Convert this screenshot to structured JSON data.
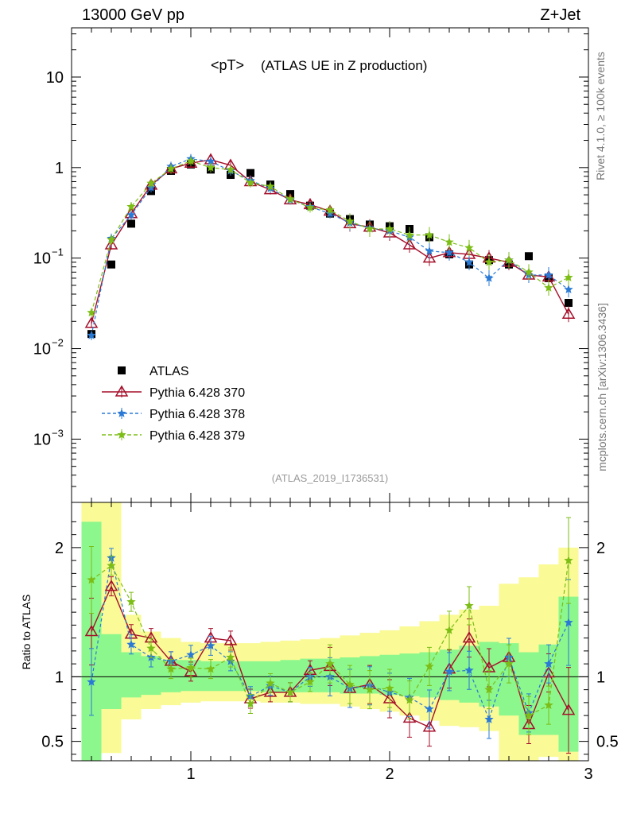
{
  "header": {
    "energy_label": "13000 GeV pp",
    "process_label": "Z+Jet"
  },
  "side_labels": {
    "rivet": "Rivet 4.1.0, ≥ 100k events",
    "mcplots": "mcplots.cern.ch [arXiv:1306.3436]"
  },
  "analysis_id": "(ATLAS_2019_I1736531)",
  "colors": {
    "atlas": "#000000",
    "p370": "#a50f2a",
    "p378": "#2a7ad5",
    "p379": "#7cbd16",
    "band_inner": "#8cf78c",
    "band_outer": "#fafa96"
  },
  "chart_data": {
    "type": "scatter",
    "title": "<pT>",
    "subtitle": "(ATLAS UE in Z production)",
    "xlabel": "",
    "ylabel_ratio": "Ratio to ATLAS",
    "xlim": [
      0.4,
      3.0
    ],
    "ylim": [
      0.0002,
      35
    ],
    "ylim_ratio": [
      0.35,
      2.35
    ],
    "x_ticks": [
      "1",
      "2",
      "3"
    ],
    "y_ticks": [
      "10",
      "1",
      "10^-1",
      "10^-2",
      "10^-3"
    ],
    "ratio_ticks": [
      "2",
      "1",
      "0.5"
    ],
    "x": [
      0.5,
      0.6,
      0.7,
      0.8,
      0.9,
      1.0,
      1.1,
      1.2,
      1.3,
      1.4,
      1.5,
      1.6,
      1.7,
      1.8,
      1.9,
      2.0,
      2.1,
      2.2,
      2.3,
      2.4,
      2.5,
      2.6,
      2.7,
      2.8,
      2.9
    ],
    "series": [
      {
        "name": "ATLAS",
        "key": "atlas",
        "values": [
          0.0145,
          0.085,
          0.24,
          0.55,
          0.92,
          1.08,
          0.95,
          0.83,
          0.87,
          0.65,
          0.51,
          0.38,
          0.31,
          0.27,
          0.235,
          0.225,
          0.21,
          0.17,
          0.11,
          0.085,
          0.095,
          0.085,
          0.105,
          0.06,
          0.032
        ]
      },
      {
        "name": "Pythia 6.428 370",
        "key": "p370",
        "values": [
          0.019,
          0.14,
          0.31,
          0.64,
          0.97,
          1.12,
          1.22,
          1.06,
          0.7,
          0.57,
          0.44,
          0.39,
          0.33,
          0.24,
          0.22,
          0.19,
          0.14,
          0.1,
          0.115,
          0.11,
          0.1,
          0.09,
          0.065,
          0.062,
          0.024
        ]
      },
      {
        "name": "Pythia 6.428 378",
        "key": "p378",
        "values": [
          0.014,
          0.165,
          0.3,
          0.6,
          1.03,
          1.25,
          1.17,
          0.92,
          0.72,
          0.59,
          0.44,
          0.37,
          0.31,
          0.245,
          0.215,
          0.2,
          0.17,
          0.12,
          0.115,
          0.09,
          0.06,
          0.095,
          0.065,
          0.065,
          0.045
        ]
      },
      {
        "name": "Pythia 6.428 379",
        "key": "p379",
        "values": [
          0.025,
          0.16,
          0.37,
          0.67,
          0.97,
          1.18,
          1.0,
          0.95,
          0.68,
          0.62,
          0.45,
          0.36,
          0.34,
          0.255,
          0.21,
          0.21,
          0.18,
          0.18,
          0.15,
          0.13,
          0.09,
          0.095,
          0.07,
          0.047,
          0.061
        ]
      }
    ],
    "ratio_series": [
      {
        "name": "Pythia 6.428 370",
        "key": "p370",
        "values": [
          1.35,
          1.7,
          1.33,
          1.3,
          1.12,
          1.04,
          1.3,
          1.28,
          0.83,
          0.88,
          0.88,
          1.05,
          1.08,
          0.91,
          0.94,
          0.83,
          0.68,
          0.61,
          1.06,
          1.3,
          1.07,
          1.15,
          0.63,
          1.03,
          0.74
        ]
      },
      {
        "name": "Pythia 6.428 378",
        "key": "p378",
        "values": [
          0.96,
          1.92,
          1.25,
          1.15,
          1.12,
          1.17,
          1.24,
          1.12,
          0.85,
          0.93,
          0.88,
          1.0,
          1.0,
          0.91,
          0.93,
          0.88,
          0.84,
          0.75,
          1.04,
          1.05,
          0.67,
          1.15,
          0.72,
          1.1,
          1.42
        ]
      },
      {
        "name": "Pythia 6.428 379",
        "key": "p379",
        "values": [
          1.75,
          1.86,
          1.58,
          1.22,
          1.06,
          1.07,
          1.06,
          1.15,
          0.79,
          0.95,
          0.88,
          0.96,
          1.1,
          0.94,
          0.9,
          0.91,
          0.82,
          1.08,
          1.36,
          1.55,
          0.9,
          1.1,
          0.7,
          0.78,
          1.9
        ]
      }
    ],
    "band_inner": [
      [
        0.24,
        2.2
      ],
      [
        0.75,
        1.33
      ],
      [
        0.84,
        1.19
      ],
      [
        0.86,
        1.16
      ],
      [
        0.88,
        1.13
      ],
      [
        0.89,
        1.13
      ],
      [
        0.89,
        1.12
      ],
      [
        0.89,
        1.12
      ],
      [
        0.89,
        1.12
      ],
      [
        0.88,
        1.12
      ],
      [
        0.88,
        1.13
      ],
      [
        0.88,
        1.14
      ],
      [
        0.88,
        1.14
      ],
      [
        0.87,
        1.15
      ],
      [
        0.87,
        1.16
      ],
      [
        0.86,
        1.17
      ],
      [
        0.85,
        1.18
      ],
      [
        0.84,
        1.19
      ],
      [
        0.82,
        1.21
      ],
      [
        0.8,
        1.24
      ],
      [
        0.77,
        1.27
      ],
      [
        0.7,
        1.26
      ],
      [
        0.55,
        1.19
      ],
      [
        0.55,
        1.25
      ],
      [
        0.42,
        1.62
      ]
    ],
    "band_outer": [
      [
        0.24,
        2.35
      ],
      [
        0.41,
        2.35
      ],
      [
        0.67,
        1.48
      ],
      [
        0.75,
        1.35
      ],
      [
        0.78,
        1.3
      ],
      [
        0.8,
        1.27
      ],
      [
        0.81,
        1.26
      ],
      [
        0.81,
        1.26
      ],
      [
        0.81,
        1.26
      ],
      [
        0.8,
        1.27
      ],
      [
        0.8,
        1.28
      ],
      [
        0.79,
        1.29
      ],
      [
        0.79,
        1.3
      ],
      [
        0.77,
        1.32
      ],
      [
        0.75,
        1.34
      ],
      [
        0.73,
        1.36
      ],
      [
        0.7,
        1.39
      ],
      [
        0.66,
        1.43
      ],
      [
        0.62,
        1.48
      ],
      [
        0.61,
        1.52
      ],
      [
        0.58,
        1.55
      ],
      [
        0.34,
        1.72
      ],
      [
        0.34,
        1.77
      ],
      [
        0.38,
        1.87
      ],
      [
        0.34,
        2.0
      ]
    ],
    "legend": [
      {
        "label": "ATLAS",
        "key": "atlas"
      },
      {
        "label": "Pythia 6.428 370",
        "key": "p370"
      },
      {
        "label": "Pythia 6.428 378",
        "key": "p378"
      },
      {
        "label": "Pythia 6.428 379",
        "key": "p379"
      }
    ],
    "legend_position": "bottom-left"
  }
}
